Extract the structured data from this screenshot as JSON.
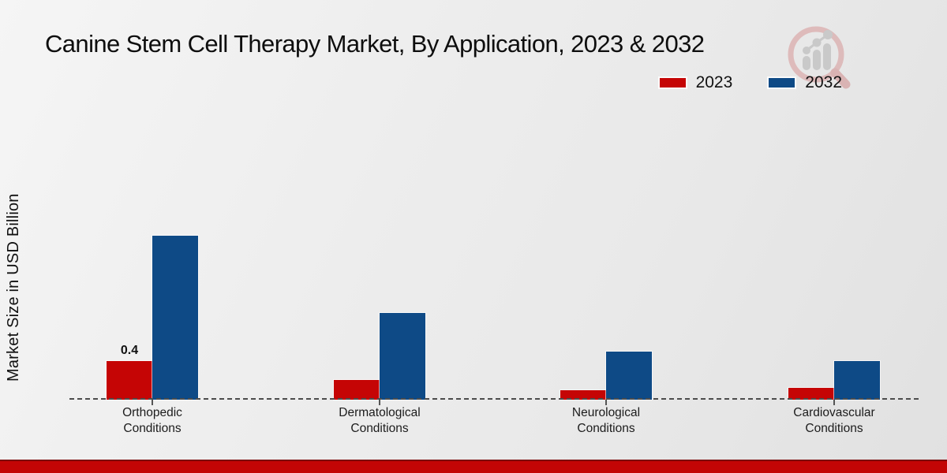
{
  "title": "Canine Stem Cell Therapy Market, By Application, 2023 & 2032",
  "y_axis_label": "Market Size in USD Billion",
  "legend": {
    "position": "top-right",
    "items": [
      "2023",
      "2032"
    ]
  },
  "icons": {
    "watermark": "magnifier-growth-chart-icon"
  },
  "colors": {
    "series_2023": "#c50505",
    "series_2032": "#0e4a86",
    "footer_bar": "#c30505",
    "baseline": "#4c4c4c",
    "watermark_ring": "#ddb7b7",
    "watermark_bars": "#c6c6c6",
    "background": "#ebebeb"
  },
  "chart_data": {
    "type": "bar",
    "title": "Canine Stem Cell Therapy Market, By Application, 2023 & 2032",
    "xlabel": "",
    "ylabel": "Market Size in USD Billion",
    "categories": [
      "Orthopedic Conditions",
      "Dermatological Conditions",
      "Neurological Conditions",
      "Cardiovascular Conditions"
    ],
    "series": [
      {
        "name": "2023",
        "color": "#c50505",
        "values": [
          0.4,
          0.2,
          0.1,
          0.12
        ]
      },
      {
        "name": "2032",
        "color": "#0e4a86",
        "values": [
          1.7,
          0.9,
          0.5,
          0.4
        ]
      }
    ],
    "data_labels": [
      {
        "series": "2023",
        "category": "Orthopedic Conditions",
        "text": "0.4"
      }
    ],
    "ylim": [
      0,
      2.0
    ],
    "y_axis_ticks_visible": false,
    "grid": false,
    "baseline_style": "dashed",
    "legend_position": "top-right"
  }
}
